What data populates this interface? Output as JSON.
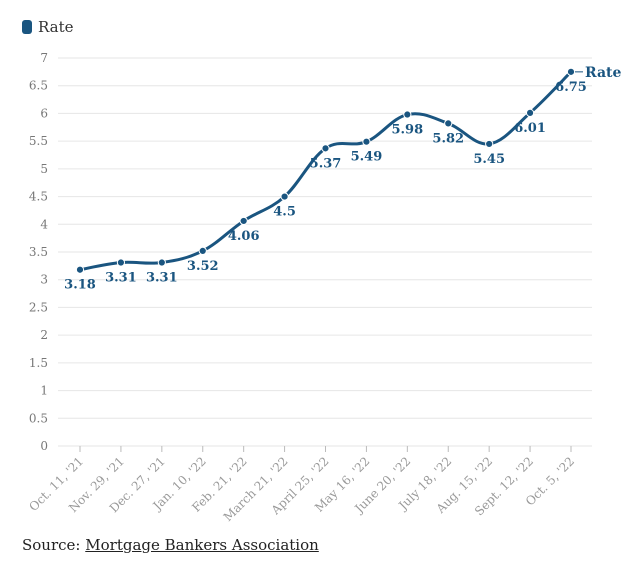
{
  "legend": {
    "label": "Rate"
  },
  "source": {
    "prefix": "Source:",
    "link_text": "Mortgage Bankers Association"
  },
  "colors": {
    "line": "#1a5580",
    "grid": "#e6e6e6",
    "axis_text": "#777777"
  },
  "chart_data": {
    "type": "line",
    "categories": [
      "Oct. 11, '21",
      "Nov. 29, '21",
      "Dec. 27, '21",
      "Jan. 10, '22",
      "Feb. 21, '22",
      "March 21, '22",
      "April 25, '22",
      "May 16, '22",
      "June 20, '22",
      "July 18, '22",
      "Aug. 15, '22",
      "Sept. 12, '22",
      "Oct. 5, '22"
    ],
    "series": [
      {
        "name": "Rate",
        "values": [
          3.18,
          3.31,
          3.31,
          3.52,
          4.06,
          4.5,
          5.37,
          5.49,
          5.98,
          5.82,
          5.45,
          6.01,
          6.75
        ]
      }
    ],
    "data_labels": [
      "3.18",
      "3.31",
      "3.31",
      "3.52",
      "4.06",
      "4.5",
      "5.37",
      "5.49",
      "5.98",
      "5.82",
      "5.45",
      "6.01",
      "6.75"
    ],
    "yticks": [
      "0",
      "0.5",
      "1",
      "1.5",
      "2",
      "2.5",
      "3",
      "3.5",
      "4",
      "4.5",
      "5",
      "5.5",
      "6",
      "6.5",
      "7"
    ],
    "ylim": [
      0,
      7
    ],
    "grid": true,
    "legend_position": "top-left",
    "end_label": "Rate"
  }
}
